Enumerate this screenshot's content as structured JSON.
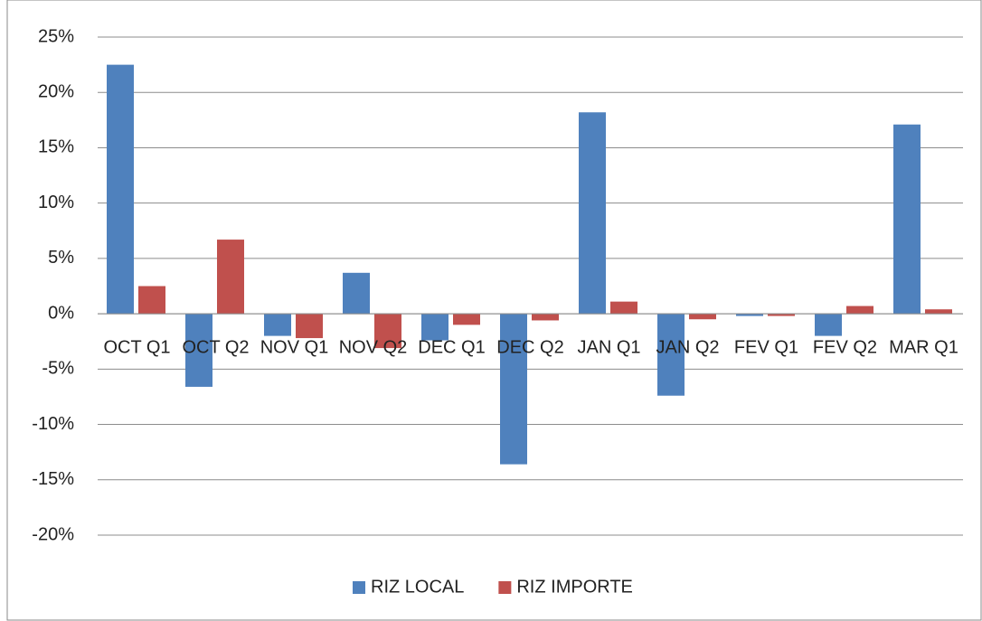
{
  "chart_data": {
    "type": "bar",
    "categories": [
      "OCT Q1",
      "OCT Q2",
      "NOV Q1",
      "NOV Q2",
      "DEC Q1",
      "DEC Q2",
      "JAN Q1",
      "JAN Q2",
      "FEV Q1",
      "FEV Q2",
      "MAR Q1"
    ],
    "series": [
      {
        "name": "RIZ LOCAL",
        "color": "#4f81bd",
        "values": [
          22.5,
          -6.6,
          -2.0,
          3.7,
          -2.4,
          -13.6,
          18.2,
          -7.4,
          -0.2,
          -2.0,
          17.1
        ]
      },
      {
        "name": "RIZ IMPORTE",
        "color": "#c0504d",
        "values": [
          2.5,
          6.7,
          -2.2,
          -3.1,
          -1.0,
          -0.6,
          1.1,
          -0.5,
          -0.2,
          0.7,
          0.4
        ]
      }
    ],
    "ylim": [
      -20,
      25
    ],
    "yticks": [
      {
        "value": -20,
        "label": "-20%"
      },
      {
        "value": -15,
        "label": "-15%"
      },
      {
        "value": -10,
        "label": "-10%"
      },
      {
        "value": -5,
        "label": "-5%"
      },
      {
        "value": 0,
        "label": "0%"
      },
      {
        "value": 5,
        "label": "5%"
      },
      {
        "value": 10,
        "label": "10%"
      },
      {
        "value": 15,
        "label": "15%"
      },
      {
        "value": 20,
        "label": "20%"
      },
      {
        "value": 25,
        "label": "25%"
      }
    ],
    "grid": true,
    "legend": "bottom"
  }
}
